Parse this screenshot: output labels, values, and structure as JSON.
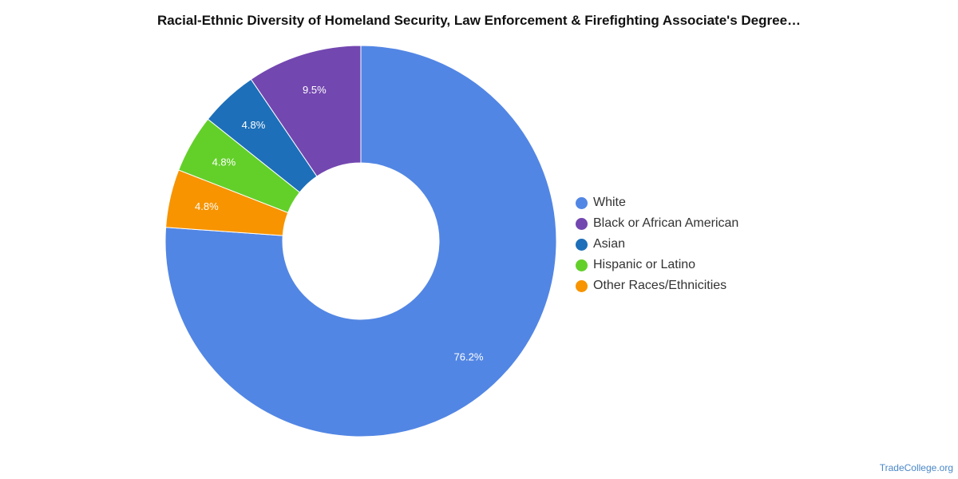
{
  "chart_data": {
    "type": "pie",
    "title": "Racial-Ethnic Diversity of Homeland Security, Law Enforcement & Firefighting Associate's Degree…",
    "donut": true,
    "legend_position": "right",
    "series": [
      {
        "name": "White",
        "value": 76.2,
        "label": "76.2%",
        "color": "#5286e4"
      },
      {
        "name": "Black or African American",
        "value": 9.5,
        "label": "9.5%",
        "color": "#7347b0"
      },
      {
        "name": "Asian",
        "value": 4.8,
        "label": "4.8%",
        "color": "#1d6fb9"
      },
      {
        "name": "Hispanic or Latino",
        "value": 4.8,
        "label": "4.8%",
        "color": "#63d02a"
      },
      {
        "name": "Other Races/Ethnicities",
        "value": 4.8,
        "label": "4.8%",
        "color": "#f79400"
      }
    ]
  },
  "watermark": "TradeCollege.org"
}
